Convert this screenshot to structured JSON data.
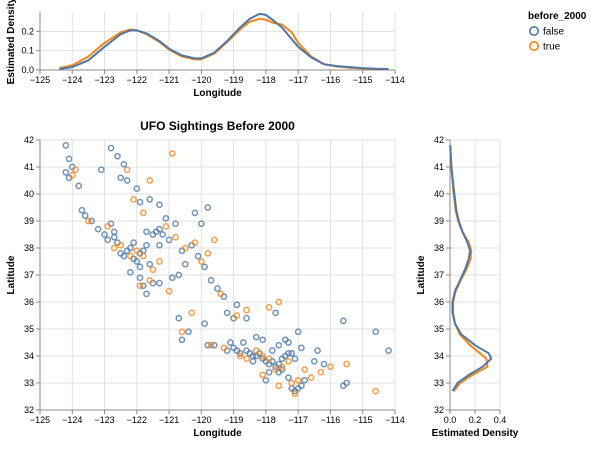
{
  "legend": {
    "title": "before_2000",
    "items": [
      {
        "label": "false",
        "color": "#4c78a8"
      },
      {
        "label": "true",
        "color": "#f58518"
      }
    ]
  },
  "chart_data": [
    {
      "id": "top-density",
      "type": "line",
      "title": "",
      "xlabel": "Longitude",
      "ylabel": "Estimated Density",
      "xlim": [
        -125,
        -114
      ],
      "ylim": [
        0,
        0.3
      ],
      "xticks": [
        -125,
        -124,
        -123,
        -122,
        -121,
        -120,
        -119,
        -118,
        -117,
        -116,
        -115,
        -114
      ],
      "yticks": [
        0.0,
        0.1,
        0.2
      ],
      "grid": true,
      "series": [
        {
          "name": "false",
          "x": [
            -124.4,
            -124.0,
            -123.5,
            -123.0,
            -122.5,
            -122.2,
            -122.0,
            -121.7,
            -121.3,
            -121.0,
            -120.6,
            -120.2,
            -120.0,
            -119.6,
            -119.2,
            -118.8,
            -118.5,
            -118.2,
            -118.0,
            -117.8,
            -117.5,
            -117.2,
            -117.0,
            -116.6,
            -116.2,
            -115.8,
            -115.4,
            -115.0,
            -114.6,
            -114.2
          ],
          "y": [
            0.005,
            0.015,
            0.05,
            0.12,
            0.185,
            0.205,
            0.205,
            0.19,
            0.15,
            0.11,
            0.075,
            0.06,
            0.06,
            0.09,
            0.15,
            0.22,
            0.265,
            0.29,
            0.285,
            0.26,
            0.22,
            0.16,
            0.12,
            0.065,
            0.03,
            0.02,
            0.015,
            0.01,
            0.006,
            0.005
          ]
        },
        {
          "name": "true",
          "x": [
            -124.4,
            -124.0,
            -123.5,
            -123.0,
            -122.5,
            -122.2,
            -122.0,
            -121.7,
            -121.3,
            -121.0,
            -120.6,
            -120.2,
            -120.0,
            -119.6,
            -119.2,
            -118.8,
            -118.5,
            -118.2,
            -118.0,
            -117.8,
            -117.5,
            -117.2,
            -117.0,
            -116.6,
            -116.2,
            -115.8,
            -115.4,
            -115.0,
            -114.6,
            -114.2
          ],
          "y": [
            0.01,
            0.025,
            0.07,
            0.14,
            0.195,
            0.21,
            0.205,
            0.185,
            0.145,
            0.105,
            0.07,
            0.055,
            0.055,
            0.085,
            0.145,
            0.21,
            0.25,
            0.265,
            0.26,
            0.245,
            0.235,
            0.195,
            0.14,
            0.07,
            0.03,
            0.018,
            0.012,
            0.008,
            0.005,
            0.004
          ]
        }
      ]
    },
    {
      "id": "main-scatter",
      "type": "scatter",
      "title": "UFO Sightings Before 2000",
      "xlabel": "Longitude",
      "ylabel": "Latitude",
      "xlim": [
        -125,
        -114
      ],
      "ylim": [
        32,
        42
      ],
      "xticks": [
        -125,
        -124,
        -123,
        -122,
        -121,
        -120,
        -119,
        -118,
        -117,
        -116,
        -115,
        -114
      ],
      "yticks": [
        32,
        33,
        34,
        35,
        36,
        37,
        38,
        39,
        40,
        41,
        42
      ],
      "grid": true,
      "series": [
        {
          "name": "false",
          "points": [
            [
              -124.2,
              41.8
            ],
            [
              -124.1,
              41.3
            ],
            [
              -124.0,
              41.0
            ],
            [
              -124.2,
              40.8
            ],
            [
              -124.1,
              40.6
            ],
            [
              -123.8,
              40.3
            ],
            [
              -123.7,
              39.4
            ],
            [
              -123.6,
              39.2
            ],
            [
              -123.4,
              39.0
            ],
            [
              -123.0,
              38.5
            ],
            [
              -122.9,
              38.3
            ],
            [
              -122.8,
              38.9
            ],
            [
              -122.7,
              38.6
            ],
            [
              -122.6,
              38.2
            ],
            [
              -122.5,
              37.8
            ],
            [
              -122.4,
              37.7
            ],
            [
              -122.3,
              37.9
            ],
            [
              -122.2,
              38.0
            ],
            [
              -122.1,
              37.6
            ],
            [
              -122.0,
              37.5
            ],
            [
              -121.9,
              37.3
            ],
            [
              -121.9,
              37.8
            ],
            [
              -121.8,
              37.9
            ],
            [
              -121.7,
              38.1
            ],
            [
              -121.6,
              37.4
            ],
            [
              -121.5,
              38.5
            ],
            [
              -121.4,
              38.6
            ],
            [
              -121.3,
              38.7
            ],
            [
              -121.2,
              38.5
            ],
            [
              -121.0,
              38.3
            ],
            [
              -121.1,
              39.1
            ],
            [
              -121.3,
              39.6
            ],
            [
              -121.6,
              39.8
            ],
            [
              -122.0,
              40.2
            ],
            [
              -122.3,
              40.5
            ],
            [
              -122.5,
              40.6
            ],
            [
              -122.4,
              41.1
            ],
            [
              -122.6,
              41.4
            ],
            [
              -122.8,
              41.7
            ],
            [
              -123.1,
              40.9
            ],
            [
              -120.8,
              38.9
            ],
            [
              -120.6,
              37.9
            ],
            [
              -120.5,
              37.4
            ],
            [
              -120.7,
              37.0
            ],
            [
              -120.9,
              36.9
            ],
            [
              -121.8,
              36.6
            ],
            [
              -121.5,
              36.7
            ],
            [
              -121.7,
              36.3
            ],
            [
              -120.2,
              39.3
            ],
            [
              -120.0,
              38.9
            ],
            [
              -119.8,
              39.5
            ],
            [
              -119.7,
              36.8
            ],
            [
              -119.5,
              36.5
            ],
            [
              -119.3,
              36.2
            ],
            [
              -120.4,
              34.9
            ],
            [
              -120.6,
              34.6
            ],
            [
              -119.8,
              34.4
            ],
            [
              -119.6,
              34.4
            ],
            [
              -119.2,
              34.2
            ],
            [
              -119.0,
              34.3
            ],
            [
              -118.9,
              34.2
            ],
            [
              -118.8,
              34.1
            ],
            [
              -118.6,
              34.2
            ],
            [
              -118.5,
              34.1
            ],
            [
              -118.4,
              34.0
            ],
            [
              -118.3,
              34.0
            ],
            [
              -118.2,
              34.1
            ],
            [
              -118.1,
              33.9
            ],
            [
              -118.0,
              33.8
            ],
            [
              -117.9,
              33.7
            ],
            [
              -117.8,
              33.8
            ],
            [
              -117.7,
              33.6
            ],
            [
              -117.6,
              33.7
            ],
            [
              -117.5,
              33.9
            ],
            [
              -117.4,
              34.0
            ],
            [
              -117.3,
              34.1
            ],
            [
              -117.2,
              34.1
            ],
            [
              -117.1,
              33.9
            ],
            [
              -117.2,
              32.8
            ],
            [
              -117.1,
              32.7
            ],
            [
              -117.0,
              32.8
            ],
            [
              -116.9,
              32.9
            ],
            [
              -116.8,
              33.1
            ],
            [
              -116.5,
              33.8
            ],
            [
              -116.2,
              33.7
            ],
            [
              -116.4,
              34.2
            ],
            [
              -115.6,
              32.9
            ],
            [
              -115.5,
              33.0
            ],
            [
              -114.6,
              34.9
            ],
            [
              -114.2,
              34.2
            ],
            [
              -117.3,
              34.5
            ],
            [
              -117.4,
              34.6
            ],
            [
              -117.6,
              34.4
            ],
            [
              -118.1,
              34.6
            ],
            [
              -118.3,
              34.7
            ],
            [
              -118.6,
              35.4
            ],
            [
              -119.0,
              35.4
            ],
            [
              -119.2,
              35.6
            ],
            [
              -118.9,
              35.9
            ],
            [
              -117.7,
              35.6
            ],
            [
              -117.0,
              34.9
            ],
            [
              -116.9,
              34.3
            ],
            [
              -115.6,
              35.3
            ],
            [
              -119.9,
              35.2
            ],
            [
              -120.7,
              35.4
            ],
            [
              -121.9,
              36.9
            ],
            [
              -121.3,
              36.7
            ],
            [
              -122.2,
              37.1
            ],
            [
              -120.1,
              37.7
            ],
            [
              -119.9,
              37.3
            ],
            [
              -120.3,
              38.1
            ],
            [
              -121.9,
              39.7
            ],
            [
              -122.7,
              38.4
            ],
            [
              -122.1,
              38.2
            ],
            [
              -121.3,
              38.1
            ],
            [
              -121.7,
              38.6
            ],
            [
              -123.2,
              38.7
            ],
            [
              -117.9,
              33.4
            ],
            [
              -117.6,
              33.4
            ],
            [
              -117.3,
              33.2
            ],
            [
              -118.0,
              33.1
            ],
            [
              -117.8,
              34.2
            ],
            [
              -118.7,
              34.5
            ],
            [
              -119.1,
              34.5
            ],
            [
              -118.4,
              33.8
            ],
            [
              -117.5,
              33.5
            ]
          ]
        },
        {
          "name": "true",
          "points": [
            [
              -124.0,
              40.7
            ],
            [
              -123.9,
              40.9
            ],
            [
              -123.5,
              39.0
            ],
            [
              -122.9,
              38.8
            ],
            [
              -122.7,
              38.0
            ],
            [
              -122.5,
              38.1
            ],
            [
              -122.2,
              37.7
            ],
            [
              -122.0,
              37.9
            ],
            [
              -121.8,
              37.7
            ],
            [
              -121.5,
              37.2
            ],
            [
              -121.3,
              37.5
            ],
            [
              -121.1,
              38.8
            ],
            [
              -120.8,
              38.4
            ],
            [
              -120.5,
              38.0
            ],
            [
              -120.2,
              38.2
            ],
            [
              -120.0,
              37.5
            ],
            [
              -119.8,
              37.8
            ],
            [
              -119.6,
              38.3
            ],
            [
              -121.9,
              36.6
            ],
            [
              -121.6,
              36.8
            ],
            [
              -121.0,
              36.4
            ],
            [
              -120.6,
              34.9
            ],
            [
              -119.7,
              34.4
            ],
            [
              -119.3,
              34.3
            ],
            [
              -118.8,
              34.0
            ],
            [
              -118.6,
              33.9
            ],
            [
              -118.3,
              34.2
            ],
            [
              -118.1,
              34.0
            ],
            [
              -117.9,
              33.9
            ],
            [
              -117.7,
              33.5
            ],
            [
              -117.5,
              33.6
            ],
            [
              -117.3,
              33.8
            ],
            [
              -117.2,
              33.0
            ],
            [
              -117.0,
              33.1
            ],
            [
              -116.8,
              33.5
            ],
            [
              -116.6,
              33.2
            ],
            [
              -116.0,
              33.6
            ],
            [
              -115.5,
              33.7
            ],
            [
              -114.6,
              32.7
            ],
            [
              -118.9,
              35.5
            ],
            [
              -119.4,
              36.3
            ],
            [
              -118.6,
              35.7
            ],
            [
              -117.9,
              35.8
            ],
            [
              -117.6,
              36.0
            ],
            [
              -121.6,
              40.5
            ],
            [
              -122.3,
              40.9
            ],
            [
              -120.9,
              41.5
            ],
            [
              -121.8,
              39.3
            ],
            [
              -122.1,
              39.8
            ],
            [
              -120.3,
              35.6
            ],
            [
              -118.1,
              33.3
            ],
            [
              -117.6,
              32.9
            ],
            [
              -117.1,
              32.6
            ],
            [
              -116.3,
              33.4
            ]
          ]
        }
      ]
    },
    {
      "id": "right-density",
      "type": "line",
      "title": "",
      "xlabel": "Estimated Density",
      "ylabel": "Latitude",
      "xlim": [
        0,
        0.4
      ],
      "ylim": [
        32,
        42
      ],
      "xticks": [
        0.0,
        0.2,
        0.4
      ],
      "yticks": [
        32,
        33,
        34,
        35,
        36,
        37,
        38,
        39,
        40,
        41,
        42
      ],
      "grid": true,
      "series": [
        {
          "name": "false",
          "lat": [
            32.7,
            33.0,
            33.3,
            33.6,
            33.9,
            34.1,
            34.4,
            34.8,
            35.2,
            35.6,
            36.0,
            36.4,
            36.8,
            37.2,
            37.6,
            37.9,
            38.2,
            38.6,
            39.0,
            39.4,
            39.8,
            40.2,
            40.6,
            41.0,
            41.4,
            41.8
          ],
          "density": [
            0.02,
            0.06,
            0.15,
            0.26,
            0.33,
            0.31,
            0.2,
            0.09,
            0.04,
            0.02,
            0.02,
            0.04,
            0.08,
            0.12,
            0.15,
            0.16,
            0.14,
            0.1,
            0.07,
            0.05,
            0.04,
            0.03,
            0.02,
            0.012,
            0.006,
            0.003
          ]
        },
        {
          "name": "true",
          "lat": [
            32.7,
            33.0,
            33.3,
            33.6,
            33.9,
            34.1,
            34.4,
            34.8,
            35.2,
            35.6,
            36.0,
            36.4,
            36.8,
            37.2,
            37.6,
            37.9,
            38.2,
            38.6,
            39.0,
            39.4,
            39.8,
            40.2,
            40.6,
            41.0,
            41.4,
            41.8
          ],
          "density": [
            0.03,
            0.08,
            0.18,
            0.3,
            0.29,
            0.24,
            0.16,
            0.08,
            0.04,
            0.025,
            0.025,
            0.045,
            0.085,
            0.13,
            0.165,
            0.17,
            0.15,
            0.1,
            0.065,
            0.045,
            0.035,
            0.025,
            0.018,
            0.01,
            0.005,
            0.002
          ]
        }
      ]
    }
  ]
}
